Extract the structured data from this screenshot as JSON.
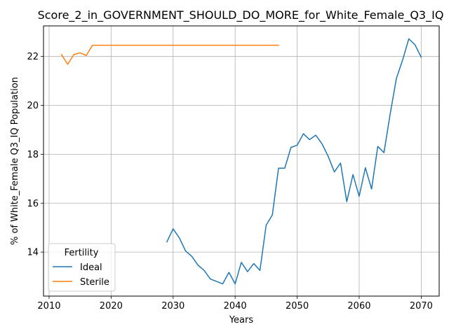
{
  "chart_data": {
    "type": "line",
    "title": "Score_2_in_GOVERNMENT_SHOULD_DO_MORE_for_White_Female_Q3_IQ",
    "xlabel": "Years",
    "ylabel": "% of White_Female Q3_IQ Population",
    "xlim": [
      2009.1,
      2072.9
    ],
    "ylim": [
      12.2,
      23.25
    ],
    "xticks": [
      2010,
      2020,
      2030,
      2040,
      2050,
      2060,
      2070
    ],
    "yticks": [
      14,
      16,
      18,
      20,
      22
    ],
    "grid": true,
    "legend": {
      "title": "Fertility",
      "placement": "lower-left"
    },
    "series": [
      {
        "name": "Ideal",
        "color": "#1f77b4",
        "x": [
          2029,
          2030,
          2031,
          2032,
          2033,
          2034,
          2035,
          2036,
          2037,
          2038,
          2039,
          2040,
          2041,
          2042,
          2043,
          2044,
          2045,
          2046,
          2047,
          2048,
          2049,
          2050,
          2051,
          2052,
          2053,
          2054,
          2055,
          2056,
          2057,
          2058,
          2059,
          2060,
          2061,
          2062,
          2063,
          2064,
          2065,
          2066,
          2067,
          2068,
          2069,
          2070
        ],
        "values": [
          14.42,
          14.95,
          14.58,
          14.05,
          13.83,
          13.47,
          13.25,
          12.9,
          12.8,
          12.7,
          13.17,
          12.7,
          13.58,
          13.2,
          13.53,
          13.25,
          15.1,
          15.52,
          17.43,
          17.43,
          18.28,
          18.37,
          18.84,
          18.6,
          18.78,
          18.43,
          17.92,
          17.28,
          17.64,
          16.06,
          17.17,
          16.28,
          17.45,
          16.58,
          18.32,
          18.07,
          19.65,
          21.1,
          21.85,
          22.72,
          22.48,
          21.97
        ]
      },
      {
        "name": "Sterile",
        "color": "#ff7f0e",
        "x": [
          2012,
          2013,
          2014,
          2015,
          2016,
          2017,
          2018,
          2019,
          2020,
          2021,
          2022,
          2023,
          2024,
          2025,
          2026,
          2027,
          2028,
          2029,
          2030,
          2031,
          2032,
          2033,
          2034,
          2035,
          2036,
          2037,
          2038,
          2039,
          2040,
          2041,
          2042,
          2043,
          2044,
          2045,
          2046,
          2047
        ],
        "values": [
          22.08,
          21.68,
          22.08,
          22.15,
          22.04,
          22.46,
          22.46,
          22.46,
          22.46,
          22.46,
          22.46,
          22.46,
          22.46,
          22.46,
          22.46,
          22.46,
          22.46,
          22.46,
          22.46,
          22.46,
          22.46,
          22.46,
          22.46,
          22.46,
          22.46,
          22.46,
          22.46,
          22.46,
          22.46,
          22.46,
          22.46,
          22.46,
          22.46,
          22.46,
          22.46,
          22.46
        ]
      }
    ]
  }
}
